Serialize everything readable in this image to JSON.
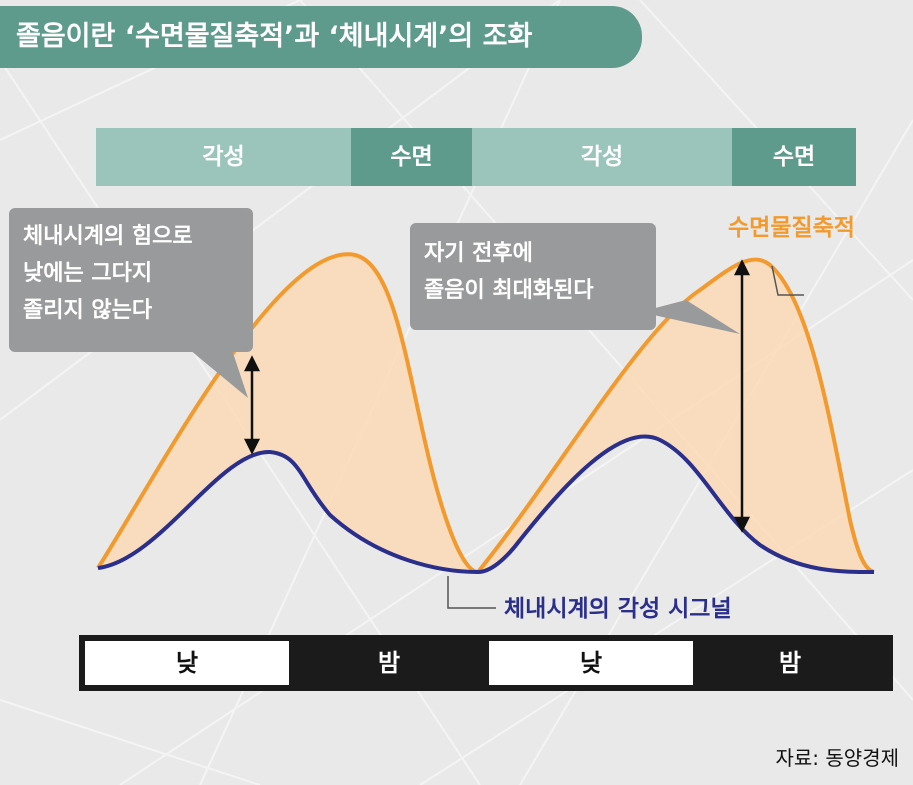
{
  "title": "졸음이란 ‘수면물질축적’과 ‘체내시계’의 조화",
  "states": [
    {
      "label": "각성",
      "type": "wake",
      "share": 0.336
    },
    {
      "label": "수면",
      "type": "sleep",
      "share": 0.16
    },
    {
      "label": "각성",
      "type": "wake",
      "share": 0.34
    },
    {
      "label": "수면",
      "type": "sleep",
      "share": 0.164
    }
  ],
  "callout_left": [
    "체내시계의 힘으로",
    "낮에는 그다지",
    "졸리지 않는다"
  ],
  "callout_right": [
    "자기 전후에",
    "졸음이 최대화된다"
  ],
  "curve_sleep_substance": "수면물질축적",
  "curve_body_clock": "체내시계의 각성 시그널",
  "daynight": [
    {
      "label": "낮",
      "type": "day"
    },
    {
      "label": "밤",
      "type": "night"
    },
    {
      "label": "낮",
      "type": "day"
    },
    {
      "label": "밤",
      "type": "night"
    }
  ],
  "source": "자료: 동양경제",
  "colors": {
    "teal_dark": "#5e9b8d",
    "teal_light": "#9bc4bb",
    "orange": "#f29a2e",
    "orange_fill": "#fbd9b5",
    "navy": "#2b2f8c",
    "callout_gray": "#999a9b"
  }
}
